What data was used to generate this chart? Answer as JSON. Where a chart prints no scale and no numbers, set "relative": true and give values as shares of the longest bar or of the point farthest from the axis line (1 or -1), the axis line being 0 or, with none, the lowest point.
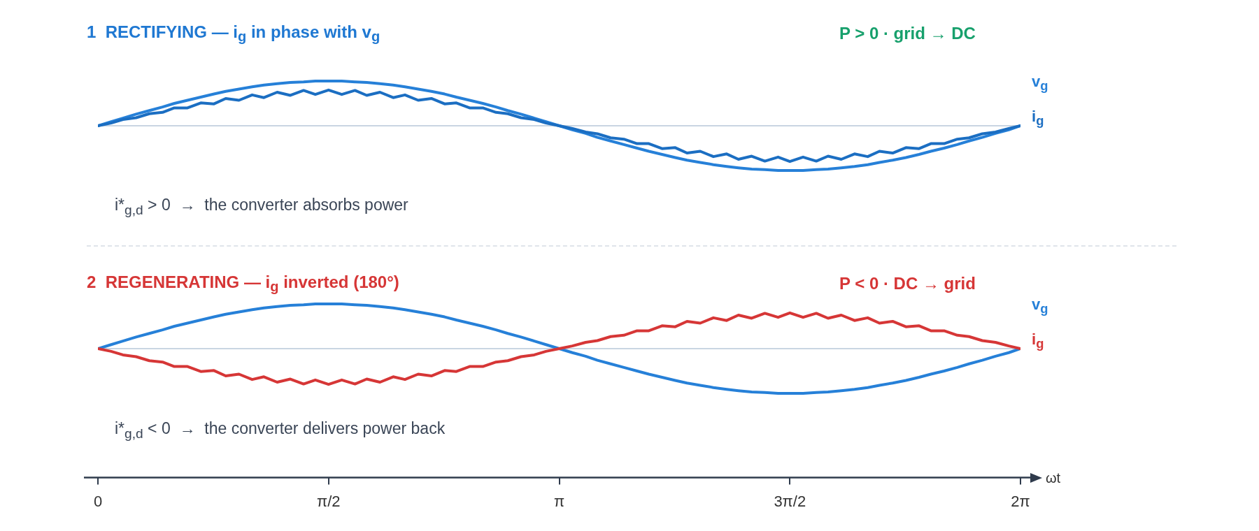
{
  "chart_data": [
    {
      "type": "line",
      "title": "1  RECTIFYING — i$_{g}$ in phase with v$_{g}$",
      "subtitle": "P > 0 · grid → DC",
      "annotations": [
        "i*$_{g,d}$ > 0  →  the converter absorbs power"
      ],
      "relative": true,
      "tick_labels": false,
      "xlim": [
        0,
        6.28
      ],
      "x": [
        0,
        0.09,
        0.17,
        0.26,
        0.35,
        0.44,
        0.52,
        0.61,
        0.7,
        0.79,
        0.87,
        0.96,
        1.05,
        1.13,
        1.22,
        1.31,
        1.4,
        1.48,
        1.57,
        1.66,
        1.75,
        1.83,
        1.92,
        2.01,
        2.09,
        2.18,
        2.27,
        2.36,
        2.44,
        2.53,
        2.62,
        2.71,
        2.79,
        2.88,
        2.97,
        3.05,
        3.14,
        3.23,
        3.32,
        3.4,
        3.49,
        3.58,
        3.67,
        3.75,
        3.84,
        3.93,
        4.01,
        4.1,
        4.19,
        4.28,
        4.36,
        4.45,
        4.54,
        4.63,
        4.71,
        4.8,
        4.89,
        4.97,
        5.06,
        5.15,
        5.24,
        5.32,
        5.41,
        5.5,
        5.59,
        5.67,
        5.76,
        5.85,
        5.93,
        6.02,
        6.11,
        6.2,
        6.28
      ],
      "series": [
        {
          "name": "v$_{g}$",
          "color": "#2680d8",
          "values": [
            0,
            0.09,
            0.17,
            0.26,
            0.34,
            0.42,
            0.5,
            0.57,
            0.64,
            0.71,
            0.77,
            0.82,
            0.87,
            0.91,
            0.94,
            0.97,
            0.98,
            1,
            1,
            1,
            0.98,
            0.97,
            0.94,
            0.91,
            0.87,
            0.82,
            0.77,
            0.71,
            0.64,
            0.57,
            0.5,
            0.42,
            0.34,
            0.26,
            0.17,
            0.09,
            0,
            -0.09,
            -0.17,
            -0.26,
            -0.34,
            -0.42,
            -0.5,
            -0.57,
            -0.64,
            -0.71,
            -0.77,
            -0.82,
            -0.87,
            -0.91,
            -0.94,
            -0.97,
            -0.98,
            -1,
            -1,
            -1,
            -0.98,
            -0.97,
            -0.94,
            -0.91,
            -0.87,
            -0.82,
            -0.77,
            -0.71,
            -0.64,
            -0.57,
            -0.5,
            -0.42,
            -0.34,
            -0.26,
            -0.17,
            -0.09,
            0
          ]
        },
        {
          "name": "i$_{g}$",
          "color": "#1b6ec2",
          "values": [
            0,
            0.06,
            0.14,
            0.18,
            0.27,
            0.3,
            0.4,
            0.4,
            0.51,
            0.49,
            0.61,
            0.57,
            0.69,
            0.63,
            0.75,
            0.68,
            0.79,
            0.7,
            0.8,
            0.7,
            0.79,
            0.68,
            0.75,
            0.63,
            0.69,
            0.57,
            0.61,
            0.49,
            0.51,
            0.4,
            0.4,
            0.3,
            0.27,
            0.18,
            0.14,
            0.06,
            0,
            -0.06,
            -0.14,
            -0.18,
            -0.27,
            -0.3,
            -0.4,
            -0.4,
            -0.51,
            -0.49,
            -0.61,
            -0.57,
            -0.69,
            -0.63,
            -0.75,
            -0.68,
            -0.79,
            -0.7,
            -0.8,
            -0.7,
            -0.79,
            -0.68,
            -0.75,
            -0.63,
            -0.69,
            -0.57,
            -0.61,
            -0.49,
            -0.51,
            -0.4,
            -0.4,
            -0.3,
            -0.27,
            -0.18,
            -0.14,
            -0.06,
            0
          ]
        }
      ]
    },
    {
      "type": "line",
      "title": "2  REGENERATING — i$_{g}$ inverted (180°)",
      "subtitle": "P < 0 · DC → grid",
      "annotations": [
        "i*$_{g,d}$ < 0  →  the converter delivers power back"
      ],
      "relative": true,
      "tick_labels": "x",
      "xlim": [
        0,
        6.28
      ],
      "xticks": [
        0,
        {
          "value": 1.57,
          "label": "π/2"
        },
        {
          "value": 3.14,
          "label": "π"
        },
        {
          "value": 4.71,
          "label": "3π/2"
        },
        {
          "value": 6.28,
          "label": "2π"
        }
      ],
      "xlabel": "ωt",
      "x": [
        0,
        0.09,
        0.17,
        0.26,
        0.35,
        0.44,
        0.52,
        0.61,
        0.7,
        0.79,
        0.87,
        0.96,
        1.05,
        1.13,
        1.22,
        1.31,
        1.4,
        1.48,
        1.57,
        1.66,
        1.75,
        1.83,
        1.92,
        2.01,
        2.09,
        2.18,
        2.27,
        2.36,
        2.44,
        2.53,
        2.62,
        2.71,
        2.79,
        2.88,
        2.97,
        3.05,
        3.14,
        3.23,
        3.32,
        3.4,
        3.49,
        3.58,
        3.67,
        3.75,
        3.84,
        3.93,
        4.01,
        4.1,
        4.19,
        4.28,
        4.36,
        4.45,
        4.54,
        4.63,
        4.71,
        4.8,
        4.89,
        4.97,
        5.06,
        5.15,
        5.24,
        5.32,
        5.41,
        5.5,
        5.59,
        5.67,
        5.76,
        5.85,
        5.93,
        6.02,
        6.11,
        6.2,
        6.28
      ],
      "series": [
        {
          "name": "v$_{g}$",
          "color": "#2680d8",
          "values": [
            0,
            0.09,
            0.17,
            0.26,
            0.34,
            0.42,
            0.5,
            0.57,
            0.64,
            0.71,
            0.77,
            0.82,
            0.87,
            0.91,
            0.94,
            0.97,
            0.98,
            1,
            1,
            1,
            0.98,
            0.97,
            0.94,
            0.91,
            0.87,
            0.82,
            0.77,
            0.71,
            0.64,
            0.57,
            0.5,
            0.42,
            0.34,
            0.26,
            0.17,
            0.09,
            0,
            -0.09,
            -0.17,
            -0.26,
            -0.34,
            -0.42,
            -0.5,
            -0.57,
            -0.64,
            -0.71,
            -0.77,
            -0.82,
            -0.87,
            -0.91,
            -0.94,
            -0.97,
            -0.98,
            -1,
            -1,
            -1,
            -0.98,
            -0.97,
            -0.94,
            -0.91,
            -0.87,
            -0.82,
            -0.77,
            -0.71,
            -0.64,
            -0.57,
            -0.5,
            -0.42,
            -0.34,
            -0.26,
            -0.17,
            -0.09,
            0
          ]
        },
        {
          "name": "i$_{g}$",
          "color": "#d63636",
          "values": [
            0,
            -0.06,
            -0.14,
            -0.18,
            -0.27,
            -0.3,
            -0.4,
            -0.4,
            -0.51,
            -0.49,
            -0.61,
            -0.57,
            -0.69,
            -0.63,
            -0.75,
            -0.68,
            -0.79,
            -0.7,
            -0.8,
            -0.7,
            -0.79,
            -0.68,
            -0.75,
            -0.63,
            -0.69,
            -0.57,
            -0.61,
            -0.49,
            -0.51,
            -0.4,
            -0.4,
            -0.3,
            -0.27,
            -0.18,
            -0.14,
            -0.06,
            0,
            0.06,
            0.14,
            0.18,
            0.27,
            0.3,
            0.4,
            0.4,
            0.51,
            0.49,
            0.61,
            0.57,
            0.69,
            0.63,
            0.75,
            0.68,
            0.79,
            0.7,
            0.8,
            0.7,
            0.79,
            0.68,
            0.75,
            0.63,
            0.69,
            0.57,
            0.61,
            0.49,
            0.51,
            0.4,
            0.4,
            0.3,
            0.27,
            0.18,
            0.14,
            0.06,
            0
          ]
        }
      ]
    }
  ]
}
